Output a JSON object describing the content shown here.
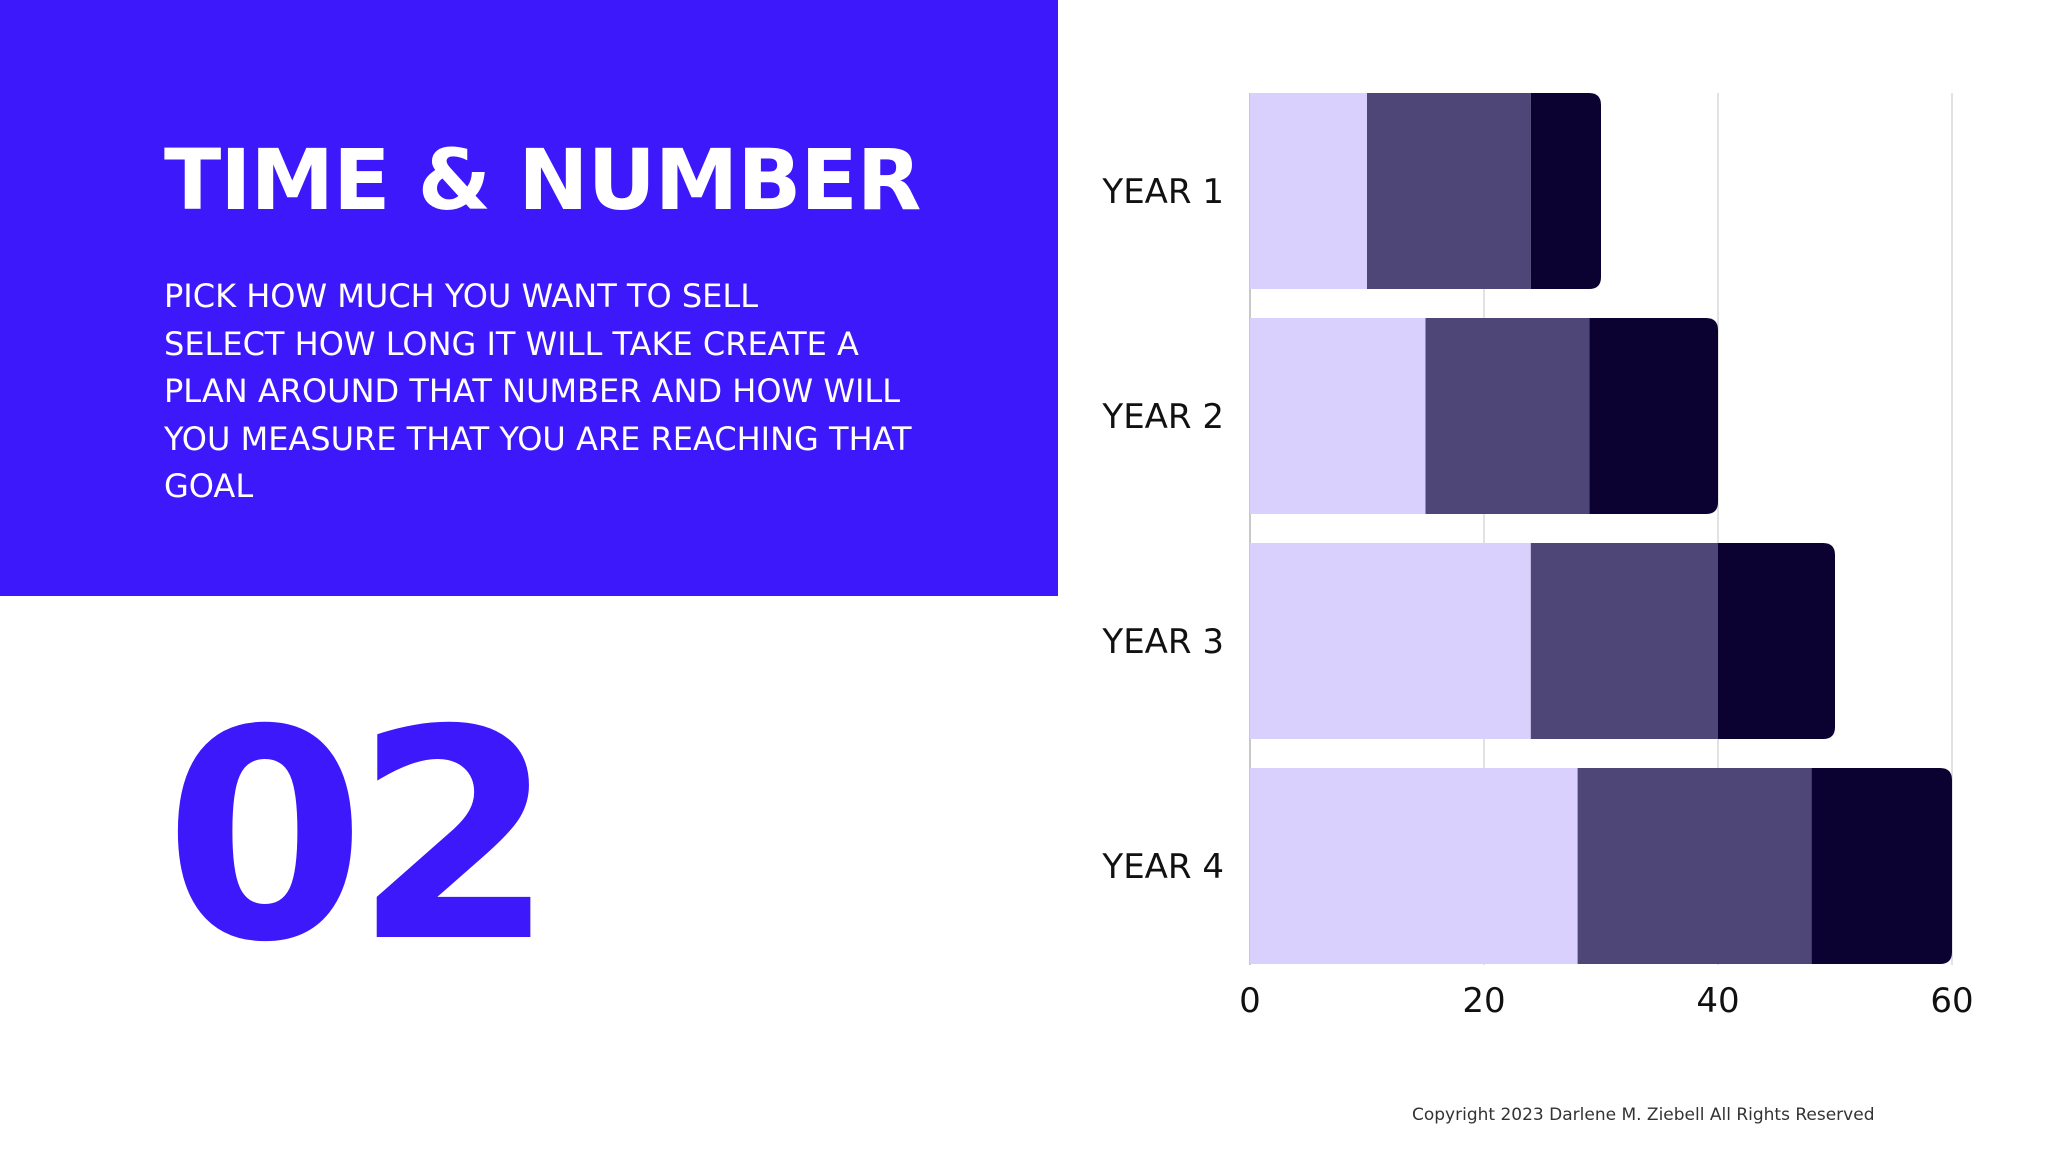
{
  "slide": {
    "title": "TIME & NUMBER",
    "body_lines": [
      "PICK HOW MUCH YOU WANT TO SELL",
      "SELECT HOW LONG IT WILL TAKE  CREATE A",
      "PLAN AROUND THAT NUMBER AND HOW WILL",
      "YOU MEASURE THAT YOU ARE REACHING THAT",
      "GOAL"
    ],
    "number": "02",
    "copyright": "Copyright 2023 Darlene M. Ziebell All Rights Reserved"
  },
  "colors": {
    "accent": "#3d18fb",
    "segment_1": "#d9d0fd",
    "segment_2": "#4e4677",
    "segment_3": "#0b0232",
    "grid": "#d8d8d8",
    "axis_text": "#111111"
  },
  "chart_data": {
    "type": "bar",
    "orientation": "horizontal",
    "stacked": true,
    "categories": [
      "YEAR 1",
      "YEAR 2",
      "YEAR 3",
      "YEAR 4"
    ],
    "series": [
      {
        "values": [
          10,
          15,
          24,
          28
        ]
      },
      {
        "values": [
          14,
          14,
          16,
          20
        ]
      },
      {
        "values": [
          6,
          11,
          10,
          12
        ]
      }
    ],
    "xlim": [
      0,
      60
    ],
    "xticks": [
      0,
      20,
      40,
      60
    ],
    "title": "",
    "xlabel": "",
    "ylabel": "",
    "grid": true,
    "legend": "none"
  }
}
